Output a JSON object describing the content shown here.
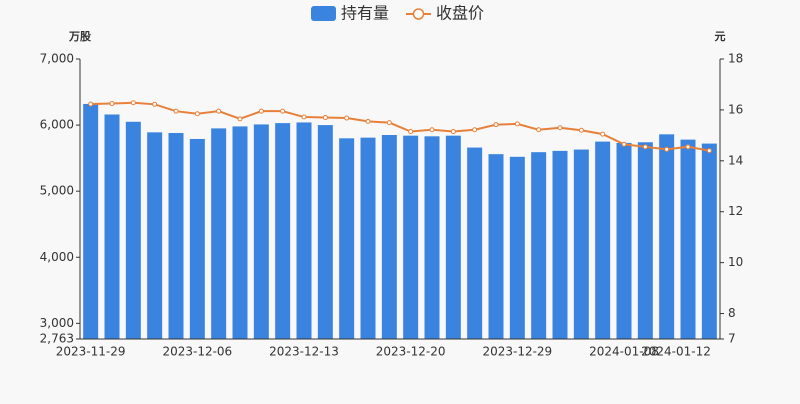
{
  "chart_data": {
    "type": "bar_line",
    "legend": [
      "持有量",
      "收盘价"
    ],
    "y_unit": "万股",
    "y2_unit": "元",
    "categories": [
      "2023-11-29",
      null,
      null,
      null,
      null,
      "2023-12-06",
      null,
      null,
      null,
      null,
      "2023-12-13",
      null,
      null,
      null,
      null,
      "2023-12-20",
      null,
      null,
      null,
      null,
      "2023-12-29",
      null,
      null,
      null,
      null,
      "2024-01-08",
      null,
      null,
      null,
      "2024-01-12"
    ],
    "series": [
      {
        "name": "持有量",
        "color": "#3a84e0",
        "type": "bar",
        "values": [
          6320,
          6160,
          6050,
          5890,
          5880,
          5790,
          5950,
          5980,
          6010,
          6030,
          6040,
          6000,
          5800,
          5810,
          5850,
          5840,
          5830,
          5840,
          5660,
          5560,
          5520,
          5590,
          5610,
          5630,
          5750,
          5730,
          5740,
          5860,
          5780,
          5720
        ]
      },
      {
        "name": "收盘价",
        "color": "#e8803a",
        "type": "line",
        "axis": "y2",
        "values": [
          16.23,
          16.25,
          16.28,
          16.22,
          15.95,
          15.85,
          15.95,
          15.65,
          15.95,
          15.95,
          15.72,
          15.7,
          15.68,
          15.55,
          15.5,
          15.15,
          15.22,
          15.15,
          15.22,
          15.42,
          15.45,
          15.22,
          15.3,
          15.2,
          15.05,
          14.65,
          14.55,
          14.45,
          14.55,
          14.4
        ]
      }
    ],
    "ylim": [
      2763,
      7000
    ],
    "yticks": [
      {
        "value": 2763,
        "label": "2,763"
      },
      {
        "value": 3000,
        "label": "3,000"
      },
      {
        "value": 4000,
        "label": "4,000"
      },
      {
        "value": 5000,
        "label": "5,000"
      },
      {
        "value": 6000,
        "label": "6,000"
      },
      {
        "value": 7000,
        "label": "7,000"
      }
    ],
    "y2lim": [
      7,
      18
    ],
    "y2ticks": [
      7,
      8,
      10,
      12,
      14,
      16,
      18
    ]
  }
}
